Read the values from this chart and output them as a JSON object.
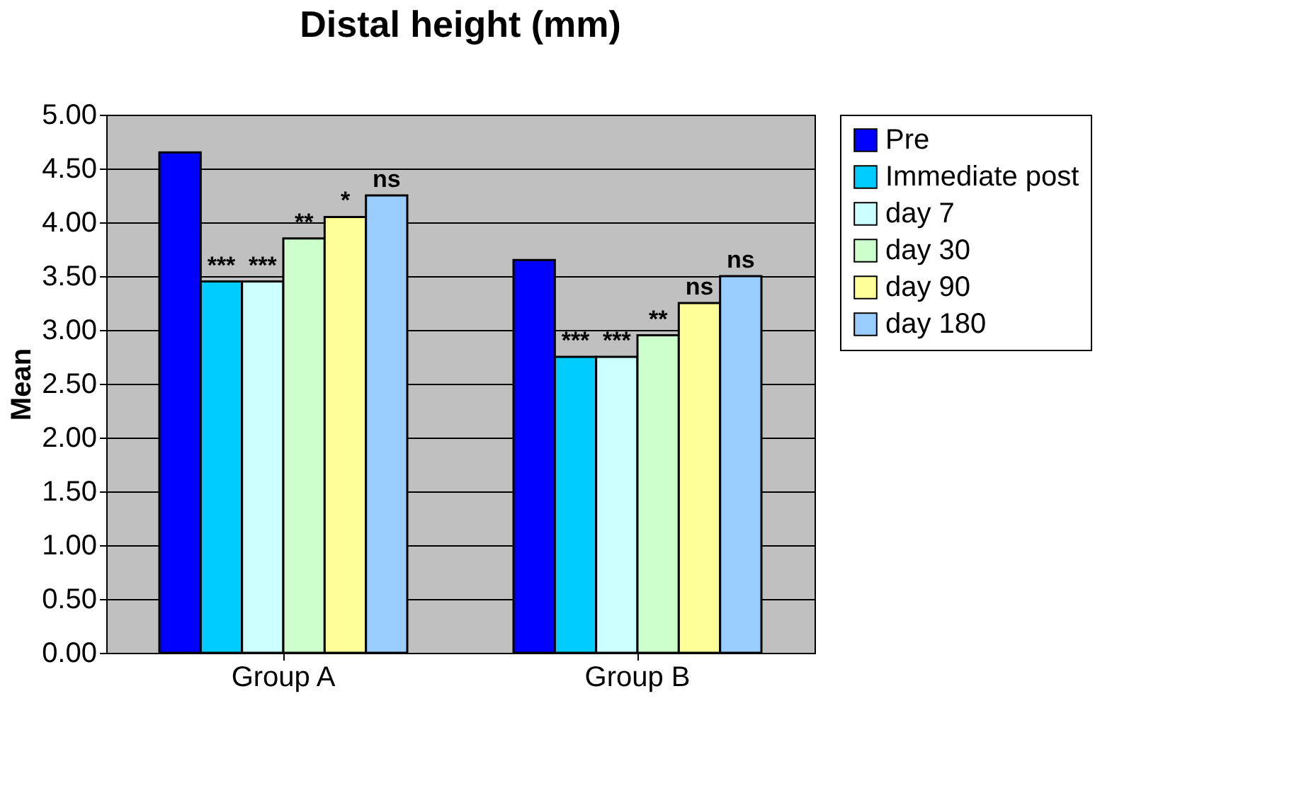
{
  "chart_data": {
    "type": "bar",
    "title": "Distal height (mm)",
    "ylabel": "Mean",
    "categories": [
      "Group A",
      "Group B"
    ],
    "series": [
      {
        "name": "Pre",
        "color": "#0000ff",
        "values": [
          4.65,
          3.65
        ]
      },
      {
        "name": "Immediate post",
        "color": "#00ccff",
        "values": [
          3.45,
          2.75
        ]
      },
      {
        "name": "day 7",
        "color": "#ccffff",
        "values": [
          3.45,
          2.75
        ]
      },
      {
        "name": "day 30",
        "color": "#ccffcc",
        "values": [
          3.85,
          2.95
        ]
      },
      {
        "name": "day 90",
        "color": "#ffff99",
        "values": [
          4.05,
          3.25
        ]
      },
      {
        "name": "day 180",
        "color": "#99ccff",
        "values": [
          4.25,
          3.5
        ]
      }
    ],
    "ylim": [
      0,
      5
    ],
    "yticks": [
      {
        "value": 0,
        "label": "0.00"
      },
      {
        "value": 0.5,
        "label": "0.50"
      },
      {
        "value": 1,
        "label": "1.00"
      },
      {
        "value": 1.5,
        "label": "1.50"
      },
      {
        "value": 2,
        "label": "2.00"
      },
      {
        "value": 2.5,
        "label": "2.50"
      },
      {
        "value": 3,
        "label": "3.00"
      },
      {
        "value": 3.5,
        "label": "3.50"
      },
      {
        "value": 4,
        "label": "4.00"
      },
      {
        "value": 4.5,
        "label": "4.50"
      },
      {
        "value": 5,
        "label": "5.00"
      }
    ],
    "annotations": [
      "***",
      "***",
      "**",
      "*",
      "ns",
      "***",
      "***",
      "**",
      "ns",
      "ns"
    ],
    "grid": "y",
    "legend": "right"
  }
}
